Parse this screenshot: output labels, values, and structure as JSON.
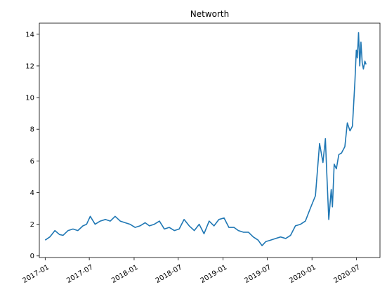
{
  "chart_data": {
    "type": "line",
    "title": "Networth",
    "xlabel": "",
    "ylabel": "",
    "x_range": [
      "2016-12-08",
      "2020-10-06"
    ],
    "ylim": [
      -0.1,
      14.7
    ],
    "y_ticks": [
      0,
      2,
      4,
      6,
      8,
      10,
      12,
      14
    ],
    "x_ticks": [
      {
        "date": "2017-01-01",
        "label": "2017-01"
      },
      {
        "date": "2017-07-01",
        "label": "2017-07"
      },
      {
        "date": "2018-01-01",
        "label": "2018-01"
      },
      {
        "date": "2018-07-01",
        "label": "2018-07"
      },
      {
        "date": "2019-01-01",
        "label": "2019-01"
      },
      {
        "date": "2019-07-01",
        "label": "2019-07"
      },
      {
        "date": "2020-01-01",
        "label": "2020-01"
      },
      {
        "date": "2020-07-01",
        "label": "2020-07"
      }
    ],
    "grid": false,
    "legend": "none",
    "line_color": "#1f77b4",
    "series": [
      {
        "x": [
          "2017-01-01",
          "2017-01-20",
          "2017-02-10",
          "2017-03-01",
          "2017-03-15",
          "2017-04-05",
          "2017-04-25",
          "2017-05-15",
          "2017-06-05",
          "2017-06-20",
          "2017-07-05",
          "2017-07-25",
          "2017-08-15",
          "2017-09-05",
          "2017-09-25",
          "2017-10-15",
          "2017-11-05",
          "2017-11-25",
          "2017-12-15",
          "2018-01-05",
          "2018-01-25",
          "2018-02-15",
          "2018-03-05",
          "2018-03-25",
          "2018-04-15",
          "2018-05-05",
          "2018-05-25",
          "2018-06-15",
          "2018-07-05",
          "2018-07-25",
          "2018-08-15",
          "2018-09-05",
          "2018-09-25",
          "2018-10-15",
          "2018-11-05",
          "2018-11-25",
          "2018-12-15",
          "2019-01-05",
          "2019-01-25",
          "2019-02-15",
          "2019-03-05",
          "2019-03-25",
          "2019-04-15",
          "2019-05-05",
          "2019-05-25",
          "2019-06-10",
          "2019-06-25",
          "2019-07-15",
          "2019-08-05",
          "2019-08-25",
          "2019-09-15",
          "2019-10-05",
          "2019-10-25",
          "2019-11-15",
          "2019-12-05",
          "2019-12-25",
          "2020-01-15",
          "2020-02-01",
          "2020-02-15",
          "2020-02-25",
          "2020-03-01",
          "2020-03-10",
          "2020-03-20",
          "2020-03-25",
          "2020-04-01",
          "2020-04-10",
          "2020-04-20",
          "2020-05-01",
          "2020-05-15",
          "2020-05-25",
          "2020-06-05",
          "2020-06-15",
          "2020-06-25",
          "2020-07-01",
          "2020-07-05",
          "2020-07-10",
          "2020-07-15",
          "2020-07-20",
          "2020-07-25",
          "2020-07-30",
          "2020-08-05",
          "2020-08-10"
        ],
        "y": [
          1.0,
          1.2,
          1.6,
          1.35,
          1.3,
          1.6,
          1.7,
          1.6,
          1.9,
          2.0,
          2.5,
          2.0,
          2.2,
          2.3,
          2.2,
          2.5,
          2.2,
          2.1,
          2.0,
          1.8,
          1.9,
          2.1,
          1.9,
          2.0,
          2.2,
          1.7,
          1.8,
          1.6,
          1.7,
          2.3,
          1.9,
          1.6,
          2.0,
          1.4,
          2.2,
          1.9,
          2.3,
          2.4,
          1.8,
          1.8,
          1.6,
          1.5,
          1.5,
          1.2,
          1.0,
          0.65,
          0.9,
          1.0,
          1.1,
          1.2,
          1.1,
          1.3,
          1.9,
          2.0,
          2.2,
          3.0,
          3.8,
          7.1,
          5.9,
          7.4,
          5.5,
          2.3,
          4.2,
          3.1,
          5.8,
          5.5,
          6.4,
          6.5,
          6.9,
          8.4,
          7.9,
          8.2,
          11.0,
          13.0,
          12.5,
          14.1,
          12.0,
          13.5,
          12.2,
          11.8,
          12.3,
          12.1
        ]
      }
    ]
  }
}
